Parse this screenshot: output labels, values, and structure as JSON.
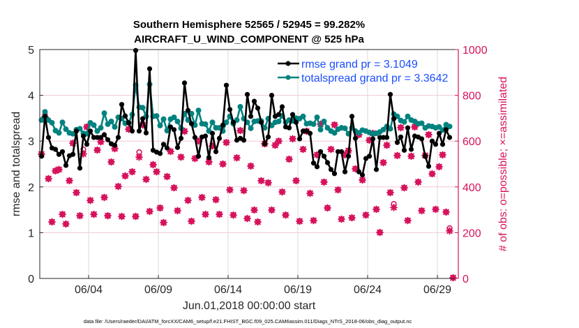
{
  "chart_data": {
    "type": "line",
    "title": [
      "Southern Hemisphere 52565 / 52945 = 99.282%",
      "AIRCRAFT_U_WIND_COMPONENT @ 525 hPa"
    ],
    "xlabel": "Jun.01,2018 00:00:00 start",
    "ylabel": "rmse and totalspread",
    "ylabel_right": "# of obs: o=possible; ×=assimilated",
    "footnote": "data file: /Users/raeder/DAI/ATM_forcXX/CAM6_setup/f.e21.FHIST_BGC.f09_025.CAM6assim.011/Diags_NTrS_2018-06/obs_diag_output.nc",
    "xlim": [
      "2018-05-31T12:00",
      "2018-06-30T12:00"
    ],
    "xticks": [
      {
        "t": "2018-06-04T00:00",
        "label": "06/04"
      },
      {
        "t": "2018-06-09T00:00",
        "label": "06/09"
      },
      {
        "t": "2018-06-14T00:00",
        "label": "06/14"
      },
      {
        "t": "2018-06-19T00:00",
        "label": "06/19"
      },
      {
        "t": "2018-06-24T00:00",
        "label": "06/24"
      },
      {
        "t": "2018-06-29T00:00",
        "label": "06/29"
      }
    ],
    "ylim": [
      0,
      5
    ],
    "yticks": [
      "0",
      "1",
      "2",
      "3",
      "4",
      "5"
    ],
    "ylim_right": [
      0,
      1000
    ],
    "yticks_right": [
      "0",
      "200",
      "400",
      "600",
      "800",
      "1000"
    ],
    "grid": true,
    "legend_position": "top-right",
    "colors": {
      "rmse": "#000000",
      "totalspread": "#00827f",
      "obs": "#d6135d",
      "legend_text": "#1a4dff",
      "grid_h": "#f0c8d6",
      "grid_v": "#d9d9d9"
    },
    "x": [
      "2018-05-31T15:00",
      "2018-05-31T21:00",
      "2018-06-01T03:00",
      "2018-06-01T09:00",
      "2018-06-01T15:00",
      "2018-06-01T21:00",
      "2018-06-02T03:00",
      "2018-06-02T09:00",
      "2018-06-02T15:00",
      "2018-06-02T21:00",
      "2018-06-03T03:00",
      "2018-06-03T09:00",
      "2018-06-03T15:00",
      "2018-06-03T21:00",
      "2018-06-04T03:00",
      "2018-06-04T09:00",
      "2018-06-04T15:00",
      "2018-06-04T21:00",
      "2018-06-05T03:00",
      "2018-06-05T09:00",
      "2018-06-05T15:00",
      "2018-06-05T21:00",
      "2018-06-06T03:00",
      "2018-06-06T09:00",
      "2018-06-06T15:00",
      "2018-06-06T21:00",
      "2018-06-07T03:00",
      "2018-06-07T09:00",
      "2018-06-07T15:00",
      "2018-06-07T21:00",
      "2018-06-08T03:00",
      "2018-06-08T09:00",
      "2018-06-08T15:00",
      "2018-06-08T21:00",
      "2018-06-09T03:00",
      "2018-06-09T09:00",
      "2018-06-09T15:00",
      "2018-06-09T21:00",
      "2018-06-10T03:00",
      "2018-06-10T09:00",
      "2018-06-10T15:00",
      "2018-06-10T21:00",
      "2018-06-11T03:00",
      "2018-06-11T09:00",
      "2018-06-11T15:00",
      "2018-06-11T21:00",
      "2018-06-12T03:00",
      "2018-06-12T09:00",
      "2018-06-12T15:00",
      "2018-06-12T21:00",
      "2018-06-13T03:00",
      "2018-06-13T09:00",
      "2018-06-13T15:00",
      "2018-06-13T21:00",
      "2018-06-14T03:00",
      "2018-06-14T09:00",
      "2018-06-14T15:00",
      "2018-06-14T21:00",
      "2018-06-15T03:00",
      "2018-06-15T09:00",
      "2018-06-15T15:00",
      "2018-06-15T21:00",
      "2018-06-16T03:00",
      "2018-06-16T09:00",
      "2018-06-16T15:00",
      "2018-06-16T21:00",
      "2018-06-17T03:00",
      "2018-06-17T09:00",
      "2018-06-17T15:00",
      "2018-06-17T21:00",
      "2018-06-18T03:00",
      "2018-06-18T09:00",
      "2018-06-18T15:00",
      "2018-06-18T21:00",
      "2018-06-19T03:00",
      "2018-06-19T09:00",
      "2018-06-19T15:00",
      "2018-06-19T21:00",
      "2018-06-20T03:00",
      "2018-06-20T09:00",
      "2018-06-20T15:00",
      "2018-06-20T21:00",
      "2018-06-21T03:00",
      "2018-06-21T09:00",
      "2018-06-21T15:00",
      "2018-06-21T21:00",
      "2018-06-22T03:00",
      "2018-06-22T09:00",
      "2018-06-22T15:00",
      "2018-06-22T21:00",
      "2018-06-23T03:00",
      "2018-06-23T09:00",
      "2018-06-23T15:00",
      "2018-06-23T21:00",
      "2018-06-24T03:00",
      "2018-06-24T09:00",
      "2018-06-24T15:00",
      "2018-06-24T21:00",
      "2018-06-25T03:00",
      "2018-06-25T09:00",
      "2018-06-25T15:00",
      "2018-06-25T21:00",
      "2018-06-26T03:00",
      "2018-06-26T09:00",
      "2018-06-26T15:00",
      "2018-06-26T21:00",
      "2018-06-27T03:00",
      "2018-06-27T09:00",
      "2018-06-27T15:00",
      "2018-06-27T21:00",
      "2018-06-28T03:00",
      "2018-06-28T09:00",
      "2018-06-28T15:00",
      "2018-06-28T21:00",
      "2018-06-29T03:00",
      "2018-06-29T09:00",
      "2018-06-29T15:00",
      "2018-06-29T21:00",
      "2018-06-30T03:00"
    ],
    "series": [
      {
        "name": "rmse grand pr = 3.1049",
        "axis": "left",
        "values": [
          2.67,
          3.54,
          3.08,
          2.85,
          2.82,
          2.71,
          2.77,
          2.47,
          2.68,
          2.71,
          3.22,
          2.41,
          3.11,
          2.93,
          3.22,
          3.08,
          3.08,
          3.08,
          3.14,
          3.03,
          2.94,
          2.91,
          3.08,
          3.8,
          3.55,
          3.4,
          3.22,
          4.98,
          3.22,
          3.49,
          3.18,
          4.58,
          2.8,
          2.76,
          2.73,
          2.93,
          2.85,
          3.31,
          3.25,
          2.86,
          3.06,
          4.27,
          3.67,
          3.38,
          3.08,
          2.67,
          3.09,
          3.11,
          2.64,
          3.17,
          2.77,
          3.06,
          3.35,
          4.22,
          3.69,
          3.41,
          3.02,
          3.06,
          3.02,
          4.02,
          3.54,
          3.87,
          3.72,
          3.41,
          2.94,
          3.09,
          4.0,
          3.54,
          3.58,
          3.75,
          3.31,
          3.29,
          3.58,
          3.41,
          3.05,
          3.22,
          3.22,
          3.17,
          2.52,
          2.44,
          2.77,
          2.67,
          2.53,
          2.38,
          2.29,
          2.77,
          2.77,
          2.33,
          2.67,
          3.54,
          3.06,
          2.33,
          2.26,
          2.62,
          2.67,
          3.05,
          2.38,
          3.08,
          3.08,
          3.08,
          4.02,
          3.49,
          2.97,
          3.09,
          2.8,
          3.29,
          2.82,
          3.11,
          3.09,
          3.05,
          2.67,
          2.45,
          3.0,
          2.93,
          3.17,
          2.93,
          3.25,
          3.08,
          null
        ]
      },
      {
        "name": "totalspread grand pr = 3.3642",
        "axis": "left",
        "values": [
          3.46,
          3.64,
          3.46,
          3.4,
          3.23,
          3.18,
          3.41,
          3.26,
          3.18,
          3.16,
          3.25,
          3.27,
          3.17,
          3.16,
          3.4,
          3.35,
          3.22,
          3.29,
          3.61,
          3.37,
          3.43,
          3.31,
          3.52,
          3.49,
          3.39,
          3.4,
          3.58,
          4.22,
          3.74,
          3.73,
          3.54,
          4.24,
          3.54,
          3.55,
          3.34,
          3.48,
          3.23,
          3.48,
          3.52,
          3.43,
          3.28,
          3.6,
          3.46,
          3.6,
          3.35,
          3.67,
          3.38,
          3.37,
          3.22,
          3.41,
          3.29,
          3.29,
          3.22,
          3.41,
          3.54,
          3.38,
          3.46,
          3.75,
          3.49,
          3.41,
          3.28,
          3.43,
          3.44,
          3.44,
          3.29,
          3.49,
          3.34,
          3.41,
          3.43,
          3.55,
          3.41,
          3.46,
          3.44,
          3.5,
          3.49,
          3.54,
          3.38,
          3.39,
          3.37,
          3.52,
          3.25,
          3.43,
          3.29,
          3.22,
          3.18,
          3.26,
          3.29,
          3.28,
          3.16,
          3.29,
          3.22,
          3.18,
          3.24,
          3.22,
          3.19,
          3.16,
          3.17,
          3.2,
          3.25,
          3.32,
          3.27,
          3.59,
          3.54,
          3.45,
          3.42,
          3.54,
          3.46,
          3.43,
          3.38,
          3.39,
          3.29,
          3.33,
          3.32,
          3.29,
          3.31,
          3.24,
          3.36,
          3.32,
          null
        ]
      },
      {
        "name": "possible",
        "axis": "right",
        "marker": "o",
        "values": [
          543,
          707,
          436,
          247,
          470,
          476,
          280,
          238,
          427,
          591,
          375,
          274,
          564,
          662,
          341,
          280,
          561,
          597,
          354,
          274,
          509,
          567,
          402,
          271,
          448,
          652,
          466,
          271,
          552,
          671,
          433,
          293,
          497,
          466,
          308,
          244,
          445,
          555,
          396,
          296,
          530,
          643,
          341,
          250,
          524,
          600,
          354,
          280,
          509,
          579,
          344,
          280,
          500,
          594,
          387,
          277,
          527,
          646,
          384,
          262,
          491,
          299,
          247,
          427,
          588,
          418,
          299,
          582,
          600,
          378,
          277,
          521,
          610,
          427,
          250,
          564,
          643,
          372,
          253,
          540,
          674,
          421,
          308,
          564,
          671,
          387,
          259,
          540,
          558,
          265,
          479,
          628,
          430,
          277,
          604,
          634,
          302,
          201,
          506,
          582,
          375,
          326,
          537,
          659,
          396,
          253,
          534,
          662,
          421,
          296,
          537,
          628,
          457,
          302,
          488,
          540,
          290,
          220,
          3
        ]
      },
      {
        "name": "assimilated",
        "axis": "right",
        "marker": "*",
        "values": [
          543,
          707,
          436,
          247,
          470,
          476,
          280,
          238,
          427,
          591,
          375,
          274,
          544,
          662,
          341,
          280,
          561,
          597,
          354,
          274,
          509,
          567,
          402,
          271,
          448,
          652,
          466,
          271,
          530,
          671,
          433,
          293,
          497,
          466,
          308,
          244,
          445,
          555,
          396,
          296,
          530,
          643,
          341,
          250,
          524,
          600,
          354,
          280,
          509,
          579,
          344,
          280,
          500,
          594,
          387,
          277,
          527,
          646,
          384,
          262,
          491,
          299,
          247,
          427,
          588,
          418,
          299,
          582,
          600,
          378,
          277,
          521,
          610,
          427,
          250,
          564,
          643,
          372,
          253,
          540,
          674,
          421,
          308,
          564,
          671,
          387,
          259,
          540,
          558,
          265,
          479,
          628,
          430,
          277,
          604,
          634,
          302,
          201,
          506,
          582,
          375,
          310,
          537,
          659,
          396,
          253,
          534,
          662,
          421,
          296,
          537,
          628,
          457,
          302,
          488,
          540,
          290,
          208,
          3
        ]
      }
    ]
  }
}
